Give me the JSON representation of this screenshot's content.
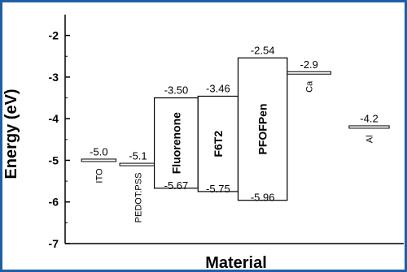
{
  "frame_color": "#1f5fa8",
  "chart_data": {
    "type": "energy-level-diagram",
    "title": "",
    "xlabel": "Material",
    "ylabel": "Energy (eV)",
    "ylim": [
      -7.0,
      -1.5
    ],
    "yticks": [
      "-2",
      "-3",
      "-4",
      "-5",
      "-6",
      "-7"
    ],
    "grid": false,
    "levels": [
      {
        "name": "ITO",
        "x_range": [
          0.45,
          1.4
        ],
        "energy": -5.0,
        "label": "-5.0",
        "name_rotated": true
      },
      {
        "name": "PEDOT:PSS",
        "x_range": [
          1.5,
          2.5
        ],
        "energy": -5.1,
        "label": "-5.1",
        "name_rotated": true
      },
      {
        "name": "Ca",
        "x_range": [
          6.1,
          7.3
        ],
        "energy": -2.9,
        "label": "-2.9",
        "name_rotated": true
      },
      {
        "name": "Al",
        "x_range": [
          7.8,
          8.9
        ],
        "energy": -4.2,
        "label": "-4.2",
        "name_rotated": true
      }
    ],
    "boxes": [
      {
        "name": "Fluorenone",
        "x_range": [
          2.45,
          3.65
        ],
        "lumo": -3.5,
        "homo": -5.67,
        "lumo_label": "-3.50",
        "homo_label": "-5.67"
      },
      {
        "name": "F6T2",
        "x_range": [
          3.65,
          4.75
        ],
        "lumo": -3.46,
        "homo": -5.75,
        "lumo_label": "-3.46",
        "homo_label": "-5.75"
      },
      {
        "name": "PFOFPen",
        "x_range": [
          4.75,
          6.1
        ],
        "lumo": -2.54,
        "homo": -5.96,
        "lumo_label": "-2.54",
        "homo_label": "-5.96"
      }
    ]
  }
}
